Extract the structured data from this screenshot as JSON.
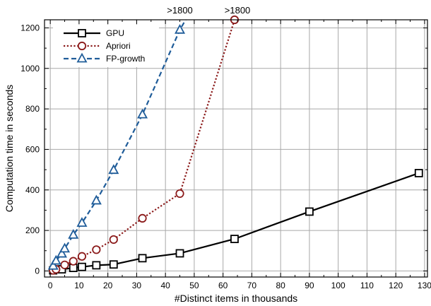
{
  "chart_data": {
    "type": "line",
    "xlabel": "#Distinct items in thousands",
    "ylabel": "Computation time in seconds",
    "xlim": [
      -2,
      131
    ],
    "ylim": [
      -30,
      1240
    ],
    "xticks": [
      0,
      10,
      20,
      30,
      40,
      50,
      60,
      70,
      80,
      90,
      100,
      110,
      120,
      130
    ],
    "xticks_minor_step": 5,
    "yticks": [
      0,
      200,
      400,
      600,
      800,
      1000,
      1200
    ],
    "yticks_minor_step": 100,
    "grid": true,
    "legend_position": "top-left",
    "annotations": [
      {
        "text": ">1800",
        "x": 45,
        "y": 1300
      },
      {
        "text": ">1800",
        "x": 65,
        "y": 1300
      }
    ],
    "series": [
      {
        "name": "GPU",
        "color": "#000000",
        "dash": "solid",
        "marker": "square",
        "x": [
          1,
          4,
          8,
          11,
          16,
          22,
          32,
          45,
          64,
          90,
          128
        ],
        "y": [
          3,
          8,
          15,
          20,
          28,
          32,
          63,
          87,
          158,
          293,
          483
        ]
      },
      {
        "name": "Apriori",
        "color": "#8b1a1a",
        "dash": "dot",
        "marker": "circle",
        "x": [
          1,
          2,
          5,
          8,
          11,
          16,
          22,
          32,
          45,
          64
        ],
        "y": [
          3,
          8,
          30,
          48,
          72,
          105,
          155,
          260,
          382,
          1240
        ]
      },
      {
        "name": "FP-growth",
        "color": "#1f5c99",
        "dash": "dash",
        "marker": "triangle",
        "x": [
          1,
          2,
          4,
          5,
          8,
          11,
          16,
          22,
          32,
          45,
          47
        ],
        "y": [
          25,
          50,
          85,
          110,
          178,
          237,
          347,
          498,
          772,
          1190,
          1240
        ],
        "markers_until_index": 9
      }
    ]
  }
}
